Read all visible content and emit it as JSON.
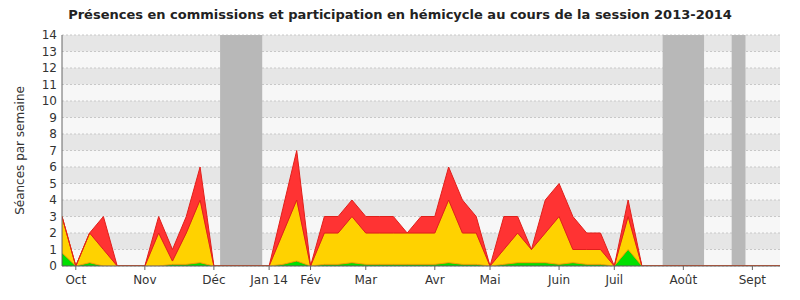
{
  "chart_data": {
    "type": "area",
    "stacked": true,
    "grid": true,
    "title": "Présences en commissions et participation en hémicycle au cours de la session 2013-2014",
    "y_label": "Séances par semaine",
    "categories": [
      null,
      "Oct",
      null,
      null,
      null,
      null,
      "Nov",
      null,
      null,
      null,
      null,
      "Déc",
      null,
      null,
      null,
      "Jan 14",
      null,
      null,
      "Fév",
      null,
      null,
      null,
      "Mar",
      null,
      null,
      null,
      null,
      "Avr",
      null,
      null,
      null,
      "Mai",
      null,
      null,
      null,
      null,
      "Juin",
      null,
      null,
      null,
      "Juil",
      null,
      null,
      null,
      null,
      "Août",
      null,
      null,
      null,
      null,
      "Sept",
      null,
      null
    ],
    "series": [
      {
        "color": "#00e000",
        "values": [
          0.8,
          0,
          0.2,
          0,
          0,
          0,
          0,
          0,
          0.1,
          0.1,
          0.2,
          0,
          0,
          0,
          0,
          0,
          0.1,
          0.3,
          0,
          0.1,
          0.1,
          0.2,
          0.1,
          0.1,
          0.1,
          0.1,
          0.1,
          0.1,
          0.2,
          0.1,
          0.1,
          0,
          0.1,
          0.2,
          0.2,
          0.2,
          0.1,
          0.2,
          0.1,
          0.1,
          0,
          1,
          0,
          0,
          0,
          0,
          0,
          0,
          0,
          0,
          0,
          0,
          0
        ]
      },
      {
        "color": "#ffd200",
        "values": [
          2.2,
          0,
          1.8,
          1,
          0,
          0,
          0,
          2,
          0.2,
          1.9,
          3.8,
          0,
          0,
          0,
          0,
          0,
          1.9,
          3.7,
          0,
          1.9,
          1.9,
          2.8,
          1.9,
          1.9,
          1.9,
          1.9,
          1.9,
          1.9,
          3.8,
          1.9,
          1.9,
          0,
          0.9,
          1.8,
          0.8,
          1.8,
          2.9,
          0.8,
          0.9,
          0.9,
          0,
          2,
          0,
          0,
          0,
          0,
          0,
          0,
          0,
          0,
          0,
          0,
          0
        ]
      },
      {
        "color": "#ff3333",
        "values": [
          0,
          0,
          0,
          2,
          0,
          0,
          0,
          1,
          0.7,
          1,
          2,
          0,
          0,
          0,
          0,
          0,
          1.5,
          3,
          0,
          1,
          1,
          1,
          1,
          1,
          1,
          0,
          1,
          1,
          2,
          2,
          1,
          0,
          2,
          1,
          0,
          2,
          2,
          2,
          1,
          1,
          0,
          1,
          0,
          0,
          0,
          0,
          0,
          0,
          0,
          0,
          0,
          0,
          0
        ]
      }
    ],
    "shaded_ranges": [
      [
        11.45,
        14.5
      ],
      [
        43.5,
        46.5
      ],
      [
        48.5,
        49.5
      ]
    ],
    "ylim": [
      0,
      14
    ],
    "yticks": [
      0,
      1,
      2,
      3,
      4,
      5,
      6,
      7,
      8,
      9,
      10,
      11,
      12,
      13,
      14
    ]
  }
}
